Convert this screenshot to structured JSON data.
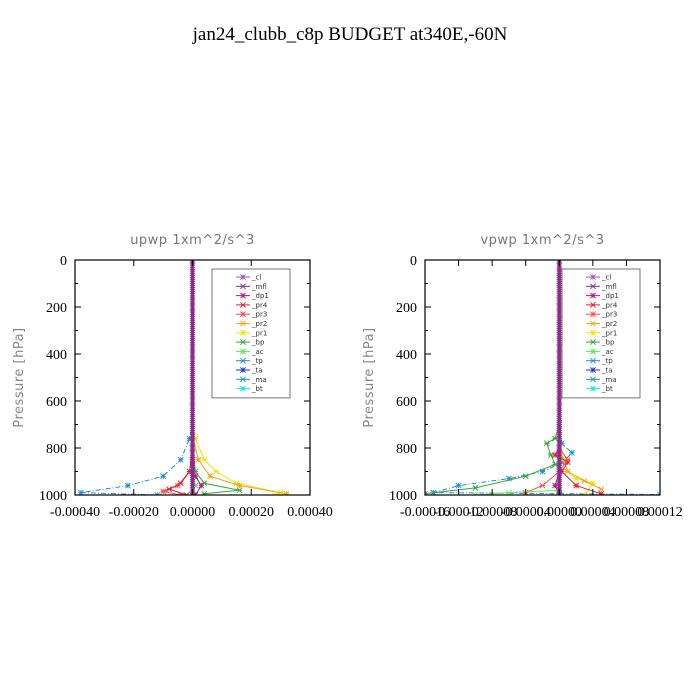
{
  "title": "jan24_clubb_c8p  BUDGET at340E,-60N",
  "colors": {
    "_cl": "#9b59b6",
    "_mfl": "#8e2b8e",
    "_dp1": "#c0187a",
    "_pr4": "#e0203a",
    "_pr3": "#ff4a4a",
    "_pr2": "#f4a51c",
    "_pr1": "#e6e600",
    "_bp": "#2eaa2e",
    "_ac": "#55ee55",
    "_tp": "#1f8fd6",
    "_ta": "#2030c8",
    "_ma": "#20a0a0",
    "_bt": "#22e0e0"
  },
  "chart_data": [
    {
      "type": "line",
      "title": "upwp   1xm^2/s^3",
      "ylabel": "Pressure [hPa]",
      "xlim": [
        -0.0004,
        0.0004
      ],
      "ylim": [
        1000,
        0
      ],
      "xticks": [
        "-0.00040",
        "-0.00020",
        "0.00000",
        "0.00020",
        "0.00040"
      ],
      "xtick_values": [
        -0.0004,
        -0.0002,
        0.0,
        0.0002,
        0.0004
      ],
      "yticks": [
        "0",
        "200",
        "400",
        "600",
        "800",
        "1000"
      ],
      "ytick_values": [
        0,
        200,
        400,
        600,
        800,
        1000
      ],
      "legend_position": "top-right",
      "legend": [
        "_cl",
        "_mfl",
        "_dp1",
        "_pr4",
        "_pr3",
        "_pr2",
        "_pr1",
        "_bp",
        "_ac",
        "_tp",
        "_ta",
        "_ma",
        "_bt"
      ],
      "series": [
        {
          "name": "_tp",
          "points": [
            [
              0,
              0
            ],
            [
              0,
              700
            ],
            [
              -1e-05,
              760
            ],
            [
              -4e-05,
              850
            ],
            [
              -0.0001,
              920
            ],
            [
              -0.00022,
              960
            ],
            [
              -0.00038,
              990
            ],
            [
              -0.00012,
              1000
            ]
          ]
        },
        {
          "name": "_pr1",
          "points": [
            [
              0,
              0
            ],
            [
              0,
              700
            ],
            [
              1e-05,
              760
            ],
            [
              4e-05,
              850
            ],
            [
              8e-05,
              900
            ],
            [
              0.00015,
              950
            ],
            [
              0.0003,
              990
            ],
            [
              0.00028,
              1000
            ]
          ]
        },
        {
          "name": "_pr2",
          "points": [
            [
              0,
              0
            ],
            [
              0,
              750
            ],
            [
              2e-05,
              850
            ],
            [
              6e-05,
              920
            ],
            [
              0.00016,
              960
            ],
            [
              0.00032,
              995
            ]
          ]
        },
        {
          "name": "_bp",
          "points": [
            [
              0,
              0
            ],
            [
              0,
              800
            ],
            [
              1e-05,
              900
            ],
            [
              4e-05,
              950
            ],
            [
              0.00016,
              980
            ],
            [
              4e-05,
              995
            ]
          ]
        },
        {
          "name": "_pr3",
          "points": [
            [
              0,
              0
            ],
            [
              0,
              800
            ],
            [
              -1e-05,
              900
            ],
            [
              -5e-05,
              960
            ],
            [
              -0.0001,
              985
            ],
            [
              -4e-05,
              1000
            ]
          ]
        },
        {
          "name": "_pr4",
          "points": [
            [
              0,
              0
            ],
            [
              0,
              800
            ],
            [
              -1e-05,
              900
            ],
            [
              -4e-05,
              950
            ],
            [
              -8e-05,
              975
            ],
            [
              -2e-05,
              1000
            ]
          ]
        },
        {
          "name": "_dp1",
          "points": [
            [
              0,
              0
            ],
            [
              0,
              850
            ],
            [
              1e-05,
              920
            ],
            [
              3e-05,
              960
            ],
            [
              1e-05,
              1000
            ]
          ]
        },
        {
          "name": "_ac",
          "points": [
            [
              0,
              0
            ],
            [
              0,
              900
            ],
            [
              1e-05,
              960
            ],
            [
              0,
              1000
            ]
          ]
        },
        {
          "name": "_ta",
          "points": [
            [
              0,
              0
            ],
            [
              0,
              1000
            ]
          ]
        },
        {
          "name": "_ma",
          "points": [
            [
              0,
              0
            ],
            [
              0,
              1000
            ]
          ]
        },
        {
          "name": "_bt",
          "points": [
            [
              0,
              0
            ],
            [
              0,
              1000
            ]
          ]
        },
        {
          "name": "_cl",
          "points": [
            [
              0,
              0
            ],
            [
              0,
              1000
            ]
          ]
        },
        {
          "name": "_mfl",
          "points": [
            [
              0,
              0
            ],
            [
              0,
              1000
            ]
          ]
        }
      ]
    },
    {
      "type": "line",
      "title": "vpwp   1xm^2/s^3",
      "ylabel": "Pressure [hPa]",
      "xlim": [
        -0.00016,
        0.00012
      ],
      "ylim": [
        1000,
        0
      ],
      "xticks": [
        "-0.00016",
        "-0.00012",
        "-0.00008",
        "-0.00004",
        "0.00000",
        "0.00004",
        "0.00008",
        "0.00012"
      ],
      "xtick_values": [
        -0.00016,
        -0.00012,
        -8e-05,
        -4e-05,
        0.0,
        4e-05,
        8e-05,
        0.00012
      ],
      "yticks": [
        "0",
        "200",
        "400",
        "600",
        "800",
        "1000"
      ],
      "ytick_values": [
        0,
        200,
        400,
        600,
        800,
        1000
      ],
      "legend_position": "top-right",
      "legend": [
        "_cl",
        "_mfl",
        "_dp1",
        "_pr4",
        "_pr3",
        "_pr2",
        "_pr1",
        "_bp",
        "_ac",
        "_tp",
        "_ta",
        "_ma",
        "_bt"
      ],
      "series": [
        {
          "name": "_tp",
          "points": [
            [
              0,
              0
            ],
            [
              0,
              700
            ],
            [
              3e-06,
              780
            ],
            [
              1.5e-05,
              820
            ],
            [
              5e-06,
              860
            ],
            [
              -2e-05,
              900
            ],
            [
              -6e-05,
              930
            ],
            [
              -0.00012,
              960
            ],
            [
              -0.00015,
              990
            ],
            [
              0.00012,
              998
            ]
          ]
        },
        {
          "name": "_bp",
          "points": [
            [
              0,
              0
            ],
            [
              0,
              700
            ],
            [
              -5e-06,
              760
            ],
            [
              -1.5e-05,
              780
            ],
            [
              -1e-05,
              830
            ],
            [
              -5e-06,
              870
            ],
            [
              -4e-05,
              920
            ],
            [
              -0.0001,
              970
            ],
            [
              -0.00016,
              995
            ]
          ]
        },
        {
          "name": "_pr1",
          "points": [
            [
              0,
              0
            ],
            [
              0,
              750
            ],
            [
              5e-06,
              850
            ],
            [
              1e-05,
              900
            ],
            [
              2e-05,
              930
            ],
            [
              4e-05,
              950
            ],
            [
              3e-05,
              1000
            ]
          ]
        },
        {
          "name": "_pr2",
          "points": [
            [
              0,
              0
            ],
            [
              0,
              800
            ],
            [
              1e-05,
              900
            ],
            [
              3e-05,
              940
            ],
            [
              5e-05,
              975
            ]
          ]
        },
        {
          "name": "_pr4",
          "points": [
            [
              0,
              0
            ],
            [
              0,
              800
            ],
            [
              -5e-06,
              830
            ],
            [
              1e-05,
              860
            ],
            [
              3e-06,
              900
            ],
            [
              2e-05,
              960
            ],
            [
              5e-05,
              995
            ]
          ]
        },
        {
          "name": "_pr3",
          "points": [
            [
              0,
              0
            ],
            [
              0,
              800
            ],
            [
              1e-05,
              850
            ],
            [
              0,
              900
            ],
            [
              -2e-05,
              960
            ],
            [
              -4e-05,
              990
            ]
          ]
        },
        {
          "name": "_dp1",
          "points": [
            [
              0,
              0
            ],
            [
              0,
              900
            ],
            [
              -5e-06,
              960
            ],
            [
              0,
              1000
            ]
          ]
        },
        {
          "name": "_ac",
          "points": [
            [
              0,
              0
            ],
            [
              0,
              980
            ],
            [
              -6e-05,
              990
            ],
            [
              -0.0001,
              1000
            ]
          ]
        },
        {
          "name": "_ta",
          "points": [
            [
              0,
              0
            ],
            [
              0,
              1000
            ]
          ]
        },
        {
          "name": "_ma",
          "points": [
            [
              0,
              0
            ],
            [
              0,
              1000
            ]
          ]
        },
        {
          "name": "_bt",
          "points": [
            [
              0,
              0
            ],
            [
              0,
              1000
            ]
          ]
        },
        {
          "name": "_cl",
          "points": [
            [
              0,
              0
            ],
            [
              0,
              1000
            ]
          ]
        },
        {
          "name": "_mfl",
          "points": [
            [
              0,
              0
            ],
            [
              0,
              1000
            ]
          ]
        }
      ]
    }
  ]
}
